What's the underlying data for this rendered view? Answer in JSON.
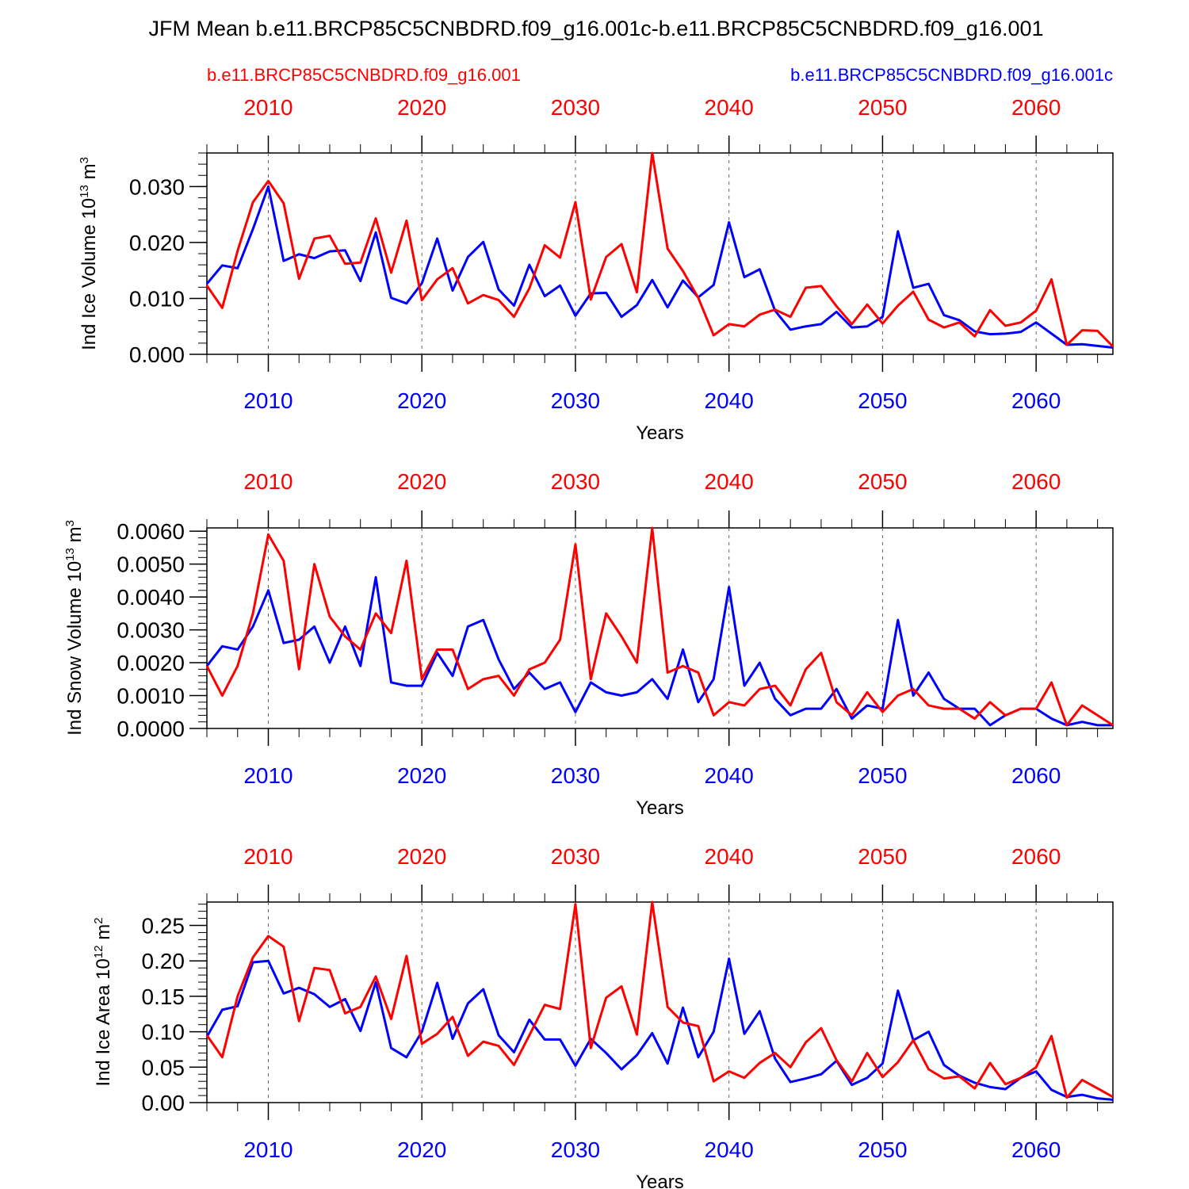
{
  "title": "JFM Mean b.e11.BRCP85C5CNBDRD.f09_g16.001c-b.e11.BRCP85C5CNBDRD.f09_g16.001",
  "legend": {
    "red_label": "b.e11.BRCP85C5CNBDRD.f09_g16.001",
    "blue_label": "b.e11.BRCP85C5CNBDRD.f09_g16.001c"
  },
  "colors": {
    "red": "#ff0000",
    "blue": "#0000ff",
    "axis": "#000000",
    "grid": "#666666"
  },
  "chart_data": [
    {
      "type": "line",
      "title": "",
      "xlabel": "Years",
      "ylabel": "Ind Ice Volume 10",
      "ylabel_exp": "13",
      "ylabel_unit": " m",
      "ylabel_unit_exp": "3",
      "xlim": [
        2006,
        2065
      ],
      "ylim": [
        0.0,
        0.036
      ],
      "x_ticks": [
        "2010",
        "2020",
        "2030",
        "2040",
        "2050",
        "2060"
      ],
      "y_ticks": [
        "0.000",
        "0.010",
        "0.020",
        "0.030"
      ],
      "x": [
        2006,
        2007,
        2008,
        2009,
        2010,
        2011,
        2012,
        2013,
        2014,
        2015,
        2016,
        2017,
        2018,
        2019,
        2020,
        2021,
        2022,
        2023,
        2024,
        2025,
        2026,
        2027,
        2028,
        2029,
        2030,
        2031,
        2032,
        2033,
        2034,
        2035,
        2036,
        2037,
        2038,
        2039,
        2040,
        2041,
        2042,
        2043,
        2044,
        2045,
        2046,
        2047,
        2048,
        2049,
        2050,
        2051,
        2052,
        2053,
        2054,
        2055,
        2056,
        2057,
        2058,
        2059,
        2060,
        2061,
        2062,
        2063,
        2064,
        2065
      ],
      "series": [
        {
          "name": "b.e11.BRCP85C5CNBDRD.f09_g16.001",
          "color": "red",
          "values": [
            0.0123,
            0.0083,
            0.0185,
            0.0272,
            0.031,
            0.027,
            0.0135,
            0.0207,
            0.0212,
            0.0162,
            0.0164,
            0.0243,
            0.0146,
            0.0239,
            0.0097,
            0.0134,
            0.0154,
            0.0091,
            0.0106,
            0.0097,
            0.0067,
            0.0118,
            0.0195,
            0.0173,
            0.0272,
            0.0098,
            0.0174,
            0.0197,
            0.0111,
            0.036,
            0.0189,
            0.0149,
            0.0101,
            0.0034,
            0.0054,
            0.005,
            0.0071,
            0.008,
            0.0067,
            0.0119,
            0.0122,
            0.0086,
            0.0054,
            0.0089,
            0.0055,
            0.0087,
            0.0112,
            0.0062,
            0.0048,
            0.0057,
            0.0032,
            0.0079,
            0.0051,
            0.0057,
            0.0078,
            0.0134,
            0.0017,
            0.0043,
            0.0042,
            0.0014
          ]
        },
        {
          "name": "b.e11.BRCP85C5CNBDRD.f09_g16.001c",
          "color": "blue",
          "values": [
            0.0126,
            0.0159,
            0.0154,
            0.0224,
            0.03,
            0.0167,
            0.0179,
            0.0172,
            0.0184,
            0.0186,
            0.0131,
            0.0218,
            0.0101,
            0.0091,
            0.0127,
            0.0207,
            0.0114,
            0.0174,
            0.0201,
            0.0116,
            0.0087,
            0.016,
            0.0104,
            0.0123,
            0.0069,
            0.0109,
            0.011,
            0.0067,
            0.0088,
            0.0133,
            0.0084,
            0.0132,
            0.0102,
            0.0124,
            0.0236,
            0.0138,
            0.0152,
            0.0078,
            0.0044,
            0.005,
            0.0054,
            0.0076,
            0.0048,
            0.005,
            0.0067,
            0.022,
            0.0119,
            0.0126,
            0.007,
            0.0061,
            0.0041,
            0.0036,
            0.0037,
            0.004,
            0.0057,
            0.0037,
            0.0017,
            0.0018,
            0.0015,
            0.0012
          ]
        }
      ]
    },
    {
      "type": "line",
      "title": "",
      "xlabel": "Years",
      "ylabel": "Ind Snow Volume 10",
      "ylabel_exp": "13",
      "ylabel_unit": " m",
      "ylabel_unit_exp": "3",
      "xlim": [
        2006,
        2065
      ],
      "ylim": [
        0.0,
        0.0061
      ],
      "x_ticks": [
        "2010",
        "2020",
        "2030",
        "2040",
        "2050",
        "2060"
      ],
      "y_ticks": [
        "0.0000",
        "0.0010",
        "0.0020",
        "0.0030",
        "0.0040",
        "0.0050",
        "0.0060"
      ],
      "x": [
        2006,
        2007,
        2008,
        2009,
        2010,
        2011,
        2012,
        2013,
        2014,
        2015,
        2016,
        2017,
        2018,
        2019,
        2020,
        2021,
        2022,
        2023,
        2024,
        2025,
        2026,
        2027,
        2028,
        2029,
        2030,
        2031,
        2032,
        2033,
        2034,
        2035,
        2036,
        2037,
        2038,
        2039,
        2040,
        2041,
        2042,
        2043,
        2044,
        2045,
        2046,
        2047,
        2048,
        2049,
        2050,
        2051,
        2052,
        2053,
        2054,
        2055,
        2056,
        2057,
        2058,
        2059,
        2060,
        2061,
        2062,
        2063,
        2064,
        2065
      ],
      "series": [
        {
          "name": "b.e11.BRCP85C5CNBDRD.f09_g16.001",
          "color": "red",
          "values": [
            0.0019,
            0.001,
            0.0019,
            0.0035,
            0.0059,
            0.0051,
            0.0018,
            0.005,
            0.0034,
            0.0028,
            0.0024,
            0.0035,
            0.0029,
            0.0051,
            0.0015,
            0.0024,
            0.0024,
            0.0012,
            0.0015,
            0.0016,
            0.001,
            0.0018,
            0.002,
            0.0027,
            0.0056,
            0.0015,
            0.0035,
            0.0028,
            0.002,
            0.0061,
            0.0017,
            0.0019,
            0.0017,
            0.0004,
            0.0008,
            0.0007,
            0.0012,
            0.0013,
            0.0007,
            0.0018,
            0.0023,
            0.0008,
            0.0004,
            0.0011,
            0.0005,
            0.001,
            0.0012,
            0.0007,
            0.0006,
            0.0006,
            0.0003,
            0.0008,
            0.0004,
            0.0006,
            0.0006,
            0.0014,
            0.0001,
            0.0007,
            0.0004,
            0.0001
          ]
        },
        {
          "name": "b.e11.BRCP85C5CNBDRD.f09_g16.001c",
          "color": "blue",
          "values": [
            0.0019,
            0.0025,
            0.0024,
            0.0031,
            0.0042,
            0.0026,
            0.0027,
            0.0031,
            0.002,
            0.0031,
            0.0019,
            0.0046,
            0.0014,
            0.0013,
            0.0013,
            0.0023,
            0.0016,
            0.0031,
            0.0033,
            0.0021,
            0.0012,
            0.0017,
            0.0012,
            0.0014,
            0.0005,
            0.0014,
            0.0011,
            0.001,
            0.0011,
            0.0015,
            0.0009,
            0.0024,
            0.0008,
            0.0015,
            0.0043,
            0.0013,
            0.002,
            0.0009,
            0.0004,
            0.0006,
            0.0006,
            0.0012,
            0.0003,
            0.0007,
            0.0006,
            0.0033,
            0.001,
            0.0017,
            0.0009,
            0.0006,
            0.0006,
            0.0001,
            0.0004,
            0.0006,
            0.0006,
            0.0003,
            0.0001,
            0.0002,
            0.0001,
            0.0001
          ]
        }
      ]
    },
    {
      "type": "line",
      "title": "",
      "xlabel": "Years",
      "ylabel": "Ind Ice Area 10",
      "ylabel_exp": "12",
      "ylabel_unit": " m",
      "ylabel_unit_exp": "2",
      "xlim": [
        2006,
        2065
      ],
      "ylim": [
        0.0,
        0.283
      ],
      "x_ticks": [
        "2010",
        "2020",
        "2030",
        "2040",
        "2050",
        "2060"
      ],
      "y_ticks": [
        "0.00",
        "0.05",
        "0.10",
        "0.15",
        "0.20",
        "0.25"
      ],
      "x": [
        2006,
        2007,
        2008,
        2009,
        2010,
        2011,
        2012,
        2013,
        2014,
        2015,
        2016,
        2017,
        2018,
        2019,
        2020,
        2021,
        2022,
        2023,
        2024,
        2025,
        2026,
        2027,
        2028,
        2029,
        2030,
        2031,
        2032,
        2033,
        2034,
        2035,
        2036,
        2037,
        2038,
        2039,
        2040,
        2041,
        2042,
        2043,
        2044,
        2045,
        2046,
        2047,
        2048,
        2049,
        2050,
        2051,
        2052,
        2053,
        2054,
        2055,
        2056,
        2057,
        2058,
        2059,
        2060,
        2061,
        2062,
        2063,
        2064,
        2065
      ],
      "series": [
        {
          "name": "b.e11.BRCP85C5CNBDRD.f09_g16.001",
          "color": "red",
          "values": [
            0.095,
            0.064,
            0.15,
            0.205,
            0.235,
            0.22,
            0.115,
            0.19,
            0.187,
            0.126,
            0.135,
            0.178,
            0.118,
            0.207,
            0.083,
            0.097,
            0.121,
            0.066,
            0.086,
            0.08,
            0.053,
            0.095,
            0.138,
            0.132,
            0.28,
            0.077,
            0.148,
            0.164,
            0.096,
            0.283,
            0.135,
            0.113,
            0.108,
            0.03,
            0.044,
            0.035,
            0.056,
            0.07,
            0.05,
            0.085,
            0.105,
            0.06,
            0.03,
            0.07,
            0.036,
            0.057,
            0.088,
            0.047,
            0.034,
            0.037,
            0.02,
            0.056,
            0.026,
            0.035,
            0.05,
            0.094,
            0.007,
            0.032,
            0.02,
            0.008
          ]
        },
        {
          "name": "b.e11.BRCP85C5CNBDRD.f09_g16.001c",
          "color": "blue",
          "values": [
            0.093,
            0.131,
            0.136,
            0.198,
            0.2,
            0.154,
            0.162,
            0.153,
            0.135,
            0.146,
            0.101,
            0.17,
            0.077,
            0.064,
            0.1,
            0.169,
            0.09,
            0.14,
            0.16,
            0.095,
            0.071,
            0.117,
            0.089,
            0.089,
            0.052,
            0.09,
            0.07,
            0.047,
            0.067,
            0.098,
            0.055,
            0.134,
            0.064,
            0.1,
            0.203,
            0.097,
            0.129,
            0.062,
            0.029,
            0.034,
            0.04,
            0.059,
            0.025,
            0.035,
            0.055,
            0.158,
            0.088,
            0.1,
            0.053,
            0.038,
            0.028,
            0.022,
            0.019,
            0.035,
            0.044,
            0.018,
            0.008,
            0.011,
            0.006,
            0.004
          ]
        }
      ]
    }
  ]
}
